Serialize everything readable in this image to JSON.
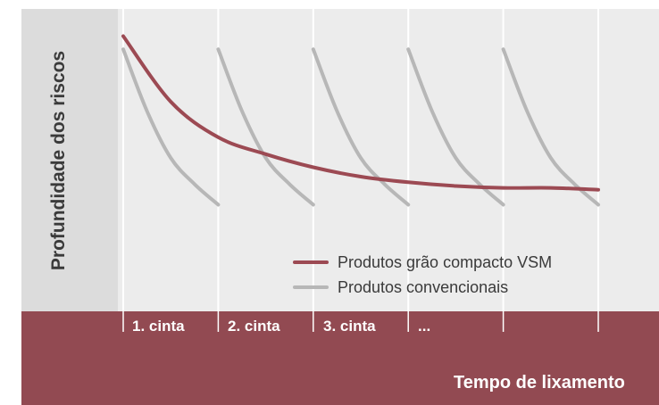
{
  "chart_data": {
    "type": "line",
    "title": "",
    "ylabel": "Profundidade dos riscos",
    "xlabel": "Tempo de lixamento",
    "segments": [
      "1. cinta",
      "2. cinta",
      "3. cinta",
      "..."
    ],
    "colors": {
      "vsm": "#9c4a53",
      "conventional": "#b7b7b7"
    },
    "series": [
      {
        "name": "Produtos grão compacto VSM",
        "x": [
          0.0,
          0.5,
          1.0,
          1.5,
          2.0,
          2.5,
          3.0,
          3.5,
          4.0,
          4.5,
          5.0
        ],
        "y": [
          0.95,
          0.6,
          0.41,
          0.32,
          0.25,
          0.2,
          0.17,
          0.15,
          0.14,
          0.14,
          0.13
        ]
      },
      {
        "name": "Produtos convencionais",
        "cycles": [
          {
            "x": [
              0.0,
              0.25,
              0.5,
              0.75,
              1.0
            ],
            "y": [
              0.88,
              0.55,
              0.3,
              0.16,
              0.05
            ]
          },
          {
            "x": [
              1.0,
              1.25,
              1.5,
              1.75,
              2.0
            ],
            "y": [
              0.88,
              0.55,
              0.3,
              0.16,
              0.05
            ]
          },
          {
            "x": [
              2.0,
              2.25,
              2.5,
              2.75,
              3.0
            ],
            "y": [
              0.88,
              0.55,
              0.3,
              0.16,
              0.05
            ]
          },
          {
            "x": [
              3.0,
              3.25,
              3.5,
              3.75,
              4.0
            ],
            "y": [
              0.88,
              0.55,
              0.3,
              0.16,
              0.05
            ]
          },
          {
            "x": [
              4.0,
              4.25,
              4.5,
              4.75,
              5.0
            ],
            "y": [
              0.88,
              0.55,
              0.3,
              0.16,
              0.05
            ]
          }
        ]
      }
    ],
    "xlim": [
      0,
      5.6
    ],
    "ylim": [
      0,
      1
    ],
    "grid": true,
    "legend_position": "bottom-right"
  }
}
